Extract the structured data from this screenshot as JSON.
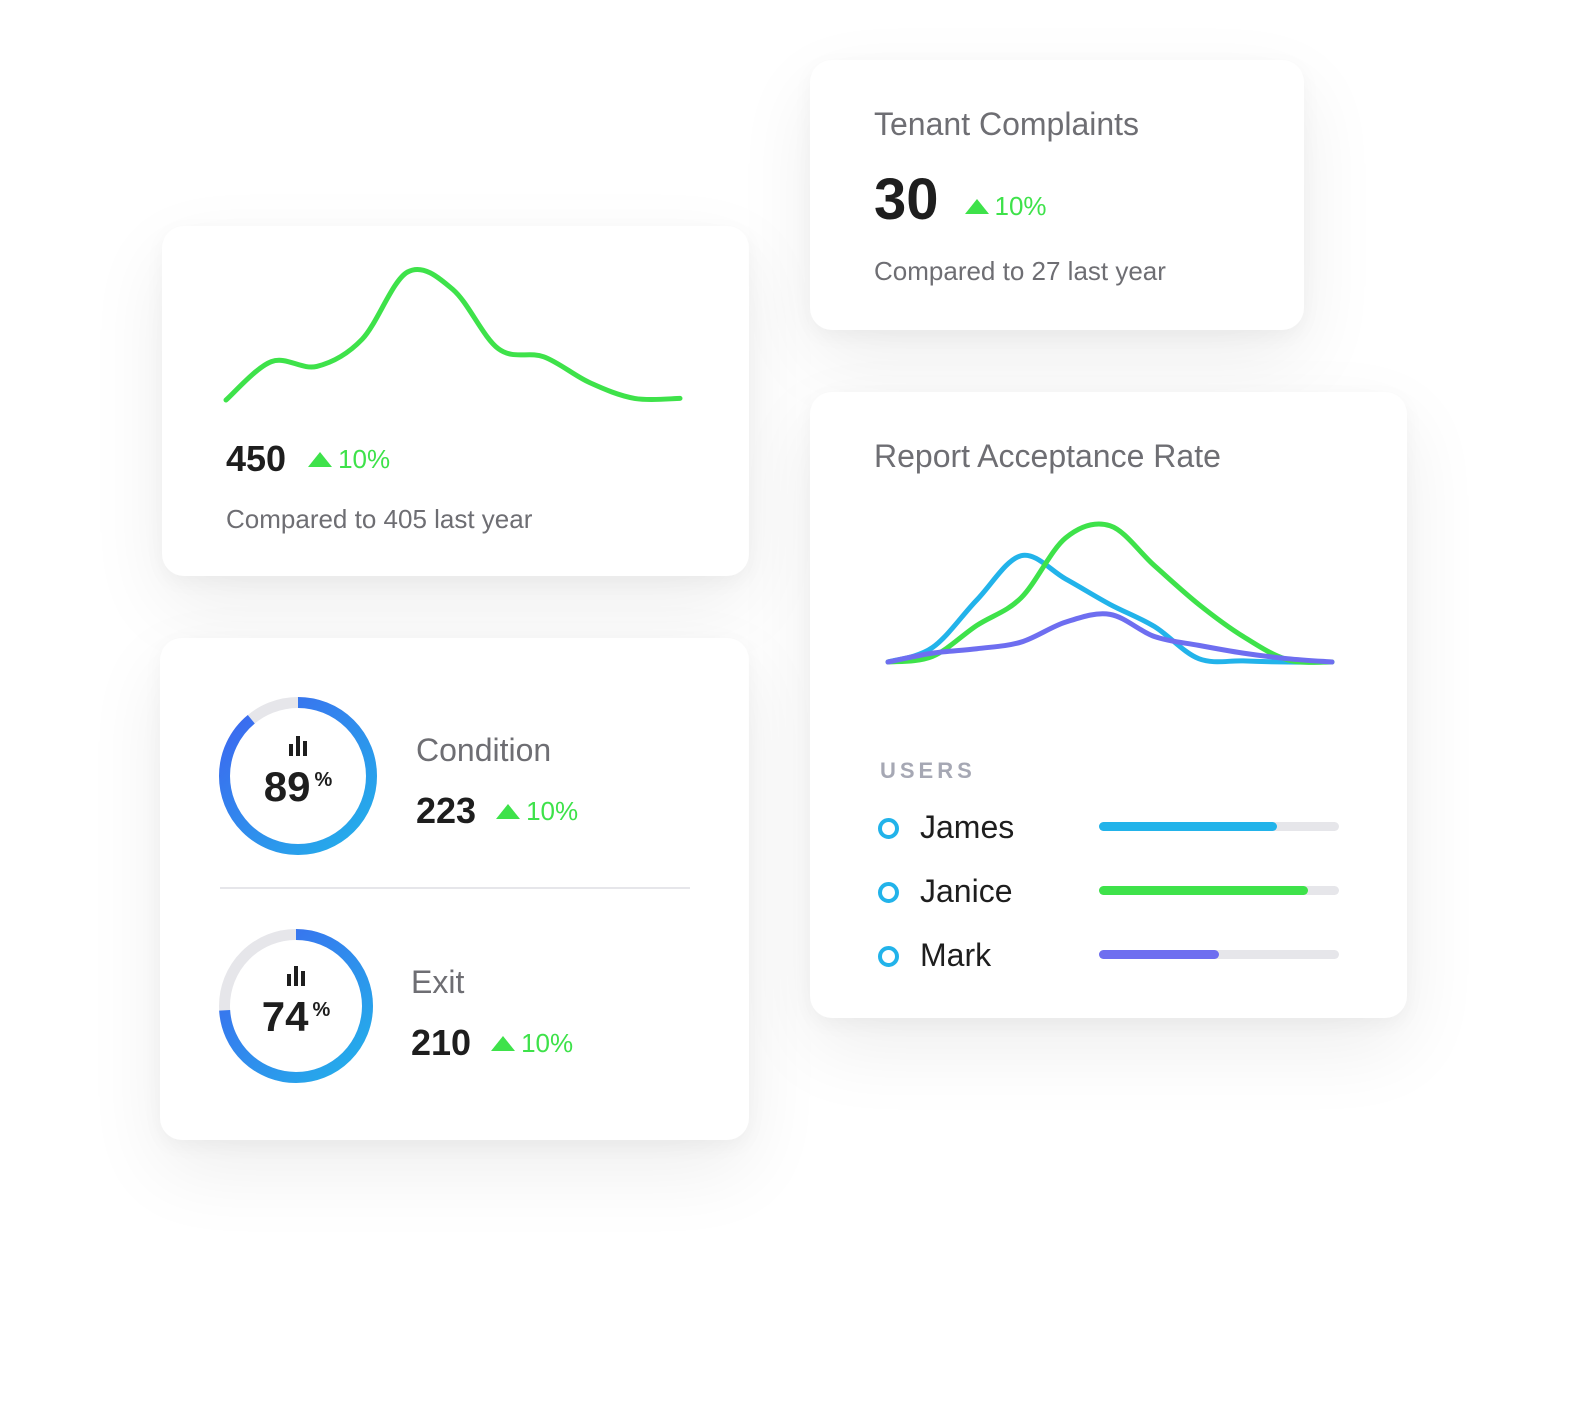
{
  "colors": {
    "green": "#3ee24a",
    "blue": "#22b3ea",
    "purple": "#6e6ef0",
    "ring_blue": "#3e63f0",
    "track": "#e6e6ea",
    "text_dark": "#1e1e1e",
    "text_muted": "#6e6e73"
  },
  "sparkline_card": {
    "value": "450",
    "change": "10%",
    "compare": "Compared to 405 last year",
    "trend_icon": "triangle-up-icon",
    "chart_data": {
      "type": "line",
      "x": [
        0,
        1,
        2,
        3,
        4,
        5,
        6,
        7,
        8,
        9,
        10
      ],
      "values": [
        0.5,
        2.9,
        2.6,
        4.3,
        8.5,
        7.4,
        3.7,
        3.2,
        1.6,
        0.6,
        0.6
      ]
    }
  },
  "complaints_card": {
    "title": "Tenant Complaints",
    "value": "30",
    "change": "10%",
    "compare": "Compared to 27 last year",
    "trend_icon": "triangle-up-icon"
  },
  "rings_card": {
    "items": [
      {
        "label": "Condition",
        "value": "223",
        "change": "10%",
        "percent": "89",
        "percent_symbol": "%",
        "fraction": 0.89,
        "icon": "bar-chart-icon"
      },
      {
        "label": "Exit",
        "value": "210",
        "change": "10%",
        "percent": "74",
        "percent_symbol": "%",
        "fraction": 0.74,
        "icon": "bar-chart-icon"
      }
    ]
  },
  "acceptance_card": {
    "title": "Report Acceptance Rate",
    "users_heading": "USERS",
    "users": [
      {
        "name": "James",
        "fraction": 0.74,
        "color": "#22b3ea"
      },
      {
        "name": "Janice",
        "fraction": 0.87,
        "color": "#3ee24a"
      },
      {
        "name": "Mark",
        "fraction": 0.5,
        "color": "#6e6ef0"
      }
    ],
    "chart_data": {
      "type": "line",
      "x": [
        0,
        1,
        2,
        3,
        4,
        5,
        6,
        7,
        8,
        9,
        10
      ],
      "series": [
        {
          "values": [
            0.0,
            1.3,
            5.6,
            9.6,
            7.5,
            5.2,
            3.2,
            0.3,
            0.1,
            0.0,
            0.0
          ],
          "color": "#22b3ea"
        },
        {
          "values": [
            0.0,
            0.5,
            3.3,
            5.8,
            11.2,
            12.3,
            8.7,
            5.2,
            2.3,
            0.2,
            0.0
          ],
          "color": "#3ee24a"
        },
        {
          "values": [
            0.0,
            0.8,
            1.2,
            1.8,
            3.6,
            4.3,
            2.3,
            1.5,
            0.8,
            0.3,
            0.0
          ],
          "color": "#6e6ef0"
        }
      ],
      "ylim": [
        0,
        13
      ]
    }
  }
}
